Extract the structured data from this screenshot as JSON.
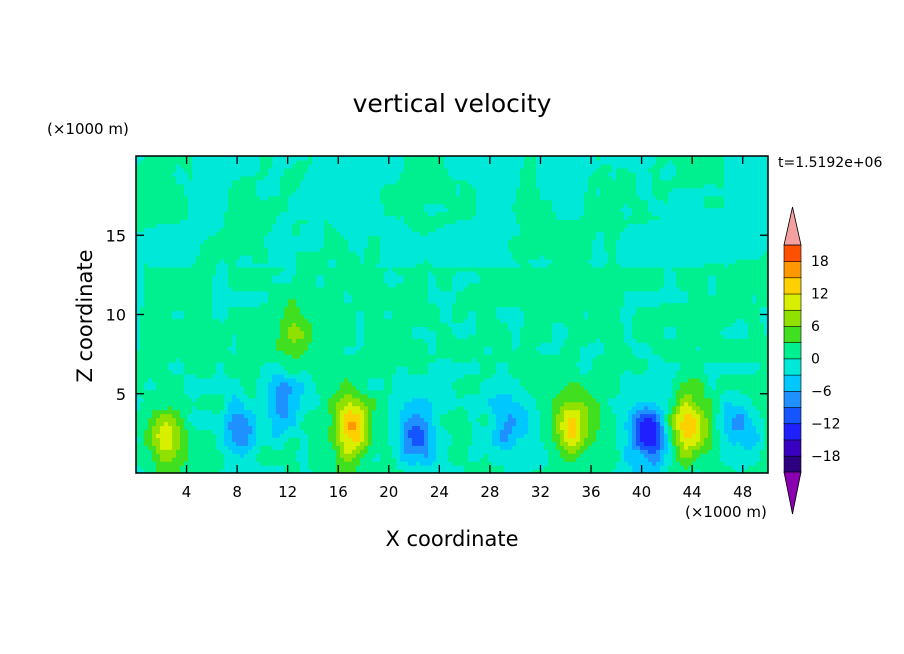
{
  "chart_data": {
    "type": "heatmap",
    "title": "vertical velocity",
    "xlabel": "X coordinate",
    "ylabel": "Z coordinate",
    "x_unit": "(×1000 m)",
    "y_unit": "(×1000 m)",
    "time_label": "t=1.5192e+06",
    "xlim": [
      0,
      50
    ],
    "ylim": [
      0,
      20
    ],
    "x_ticks": [
      4,
      8,
      12,
      16,
      20,
      24,
      28,
      32,
      36,
      40,
      44,
      48
    ],
    "y_ticks": [
      5,
      10,
      15
    ],
    "colorbar": {
      "min": -21,
      "max": 21,
      "step": 3,
      "tick_values": [
        18,
        12,
        6,
        0,
        -6,
        -12,
        -18
      ],
      "tick_labels": [
        "18",
        "12",
        "6",
        "0",
        "−6",
        "−12",
        "−18"
      ],
      "colors": [
        "#2d0080",
        "#3a00c0",
        "#2020ff",
        "#1555ff",
        "#1e90ff",
        "#00c8ff",
        "#00e8d8",
        "#00f090",
        "#40e020",
        "#90e000",
        "#d8f000",
        "#ffd000",
        "#ff9800",
        "#ff5000"
      ],
      "over_color": "#f4a0a0",
      "under_color": "#8a00b0"
    },
    "features": [
      {
        "x": 2.3,
        "z": 2.3,
        "value": 9
      },
      {
        "x": 8.2,
        "z": 2.5,
        "value": -9
      },
      {
        "x": 11.8,
        "z": 4.5,
        "value": -8
      },
      {
        "x": 17.0,
        "z": 2.8,
        "value": 15
      },
      {
        "x": 22.2,
        "z": 2.5,
        "value": -12
      },
      {
        "x": 29.5,
        "z": 3.2,
        "value": -8
      },
      {
        "x": 34.5,
        "z": 3.0,
        "value": 11
      },
      {
        "x": 40.5,
        "z": 2.5,
        "value": -14
      },
      {
        "x": 43.8,
        "z": 3.0,
        "value": 14
      },
      {
        "x": 47.8,
        "z": 3.0,
        "value": -7
      },
      {
        "x": 12.5,
        "z": 8.8,
        "value": 6
      },
      {
        "x": 18.5,
        "z": 14.0,
        "value": 1
      }
    ]
  }
}
